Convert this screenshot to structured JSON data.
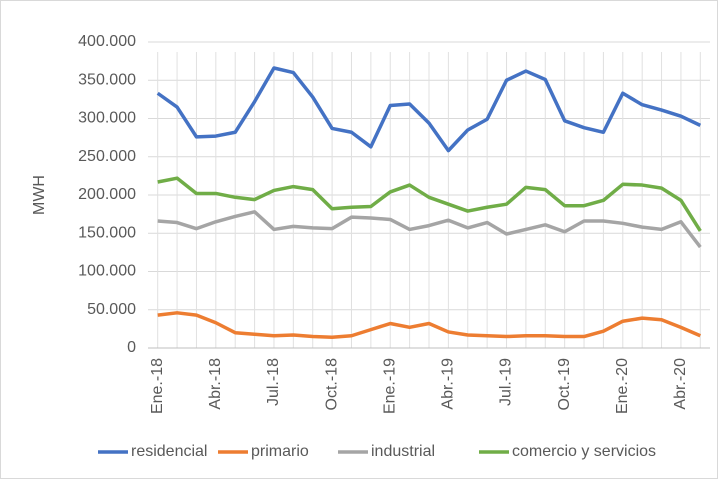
{
  "chart_data": {
    "type": "line",
    "y_axis_label": "MWH",
    "categories": [
      "Ene.-18",
      null,
      null,
      "Abr.-18",
      null,
      null,
      "Jul.-18",
      null,
      null,
      "Oct.-18",
      null,
      null,
      "Ene.-19",
      null,
      null,
      "Abr.-19",
      null,
      null,
      "Jul.-19",
      null,
      null,
      "Oct.-19",
      null,
      null,
      "Ene.-20",
      null,
      null,
      "Abr.-20",
      null
    ],
    "series": [
      {
        "name": "residencial",
        "color": "#4472c4",
        "values": [
          333000,
          315000,
          276000,
          277000,
          282000,
          322000,
          366000,
          360000,
          328000,
          287000,
          282000,
          263000,
          317000,
          319000,
          294000,
          258000,
          285000,
          299000,
          350000,
          362000,
          351000,
          297000,
          288000,
          282000,
          333000,
          318000,
          311000,
          303000,
          291000
        ]
      },
      {
        "name": "primario",
        "color": "#ed7d31",
        "values": [
          43000,
          46000,
          43000,
          33000,
          20000,
          18000,
          16000,
          17000,
          15000,
          14000,
          16000,
          24000,
          32000,
          27000,
          32000,
          21000,
          17000,
          16000,
          15000,
          16000,
          16000,
          15000,
          15000,
          22000,
          35000,
          39000,
          37000,
          27000,
          16000
        ]
      },
      {
        "name": "industrial",
        "color": "#a5a5a5",
        "values": [
          166000,
          164000,
          156000,
          165000,
          172000,
          178000,
          155000,
          159000,
          157000,
          156000,
          171000,
          170000,
          168000,
          155000,
          160000,
          167000,
          157000,
          164000,
          149000,
          155000,
          161000,
          152000,
          166000,
          166000,
          163000,
          158000,
          155000,
          165000,
          132000
        ]
      },
      {
        "name": "comercio y servicios",
        "color": "#70ad47",
        "values": [
          217000,
          222000,
          202000,
          202000,
          197000,
          194000,
          206000,
          211000,
          207000,
          182000,
          184000,
          185000,
          204000,
          213000,
          197000,
          188000,
          179000,
          184000,
          188000,
          210000,
          207000,
          186000,
          186000,
          193000,
          214000,
          213000,
          209000,
          193000,
          153000
        ]
      }
    ],
    "ylim": [
      0,
      400000
    ],
    "yticks": [
      0,
      {
        "value": 50000,
        "label": "50.000"
      },
      {
        "value": 100000,
        "label": "100.000"
      },
      {
        "value": 150000,
        "label": "150.000"
      },
      {
        "value": 200000,
        "label": "200.000"
      },
      {
        "value": 250000,
        "label": "250.000"
      },
      {
        "value": 300000,
        "label": "300.000"
      },
      {
        "value": 350000,
        "label": "350.000"
      },
      {
        "value": 400000,
        "label": "400.000"
      }
    ],
    "grid": true,
    "legend": "bottom"
  }
}
